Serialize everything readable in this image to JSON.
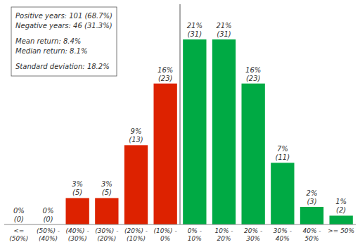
{
  "chart_data": {
    "type": "bar",
    "categories": [
      "<=\n(50%)",
      "(50%) -\n(40%)",
      "(40%) -\n(30%)",
      "(30%) -\n(20%)",
      "(20%) -\n(10%)",
      "(10%) -\n0%",
      "0% -\n10%",
      "10% -\n20%",
      "20% -\n30%",
      "30% -\n40%",
      "40% -\n50%",
      ">= 50%"
    ],
    "values": [
      0,
      0,
      3,
      3,
      9,
      16,
      21,
      21,
      16,
      7,
      2,
      1
    ],
    "value_labels": [
      "0%",
      "0%",
      "3%",
      "3%",
      "9%",
      "16%",
      "21%",
      "21%",
      "16%",
      "7%",
      "2%",
      "1%"
    ],
    "counts": [
      0,
      0,
      5,
      5,
      13,
      23,
      31,
      31,
      23,
      11,
      3,
      2
    ],
    "count_labels": [
      "(0)",
      "(0)",
      "(5)",
      "(5)",
      "(13)",
      "(23)",
      "(31)",
      "(31)",
      "(23)",
      "(11)",
      "(3)",
      "(2)"
    ],
    "colors": [
      "#dd2200",
      "#dd2200",
      "#dd2200",
      "#dd2200",
      "#dd2200",
      "#dd2200",
      "#00aa44",
      "#00aa44",
      "#00aa44",
      "#00aa44",
      "#00aa44",
      "#00aa44"
    ],
    "ylim": [
      0,
      25
    ],
    "grid": false,
    "data_labels": true,
    "tick_labels": "x",
    "annotation": [
      [
        "Positive years: 101 (68.7%)",
        "Negative years: 46 (31.3%)"
      ],
      [
        "Mean return: 8.4%",
        "Median return: 8.1%"
      ],
      [
        "Standard deviation: 18.2%"
      ]
    ]
  }
}
